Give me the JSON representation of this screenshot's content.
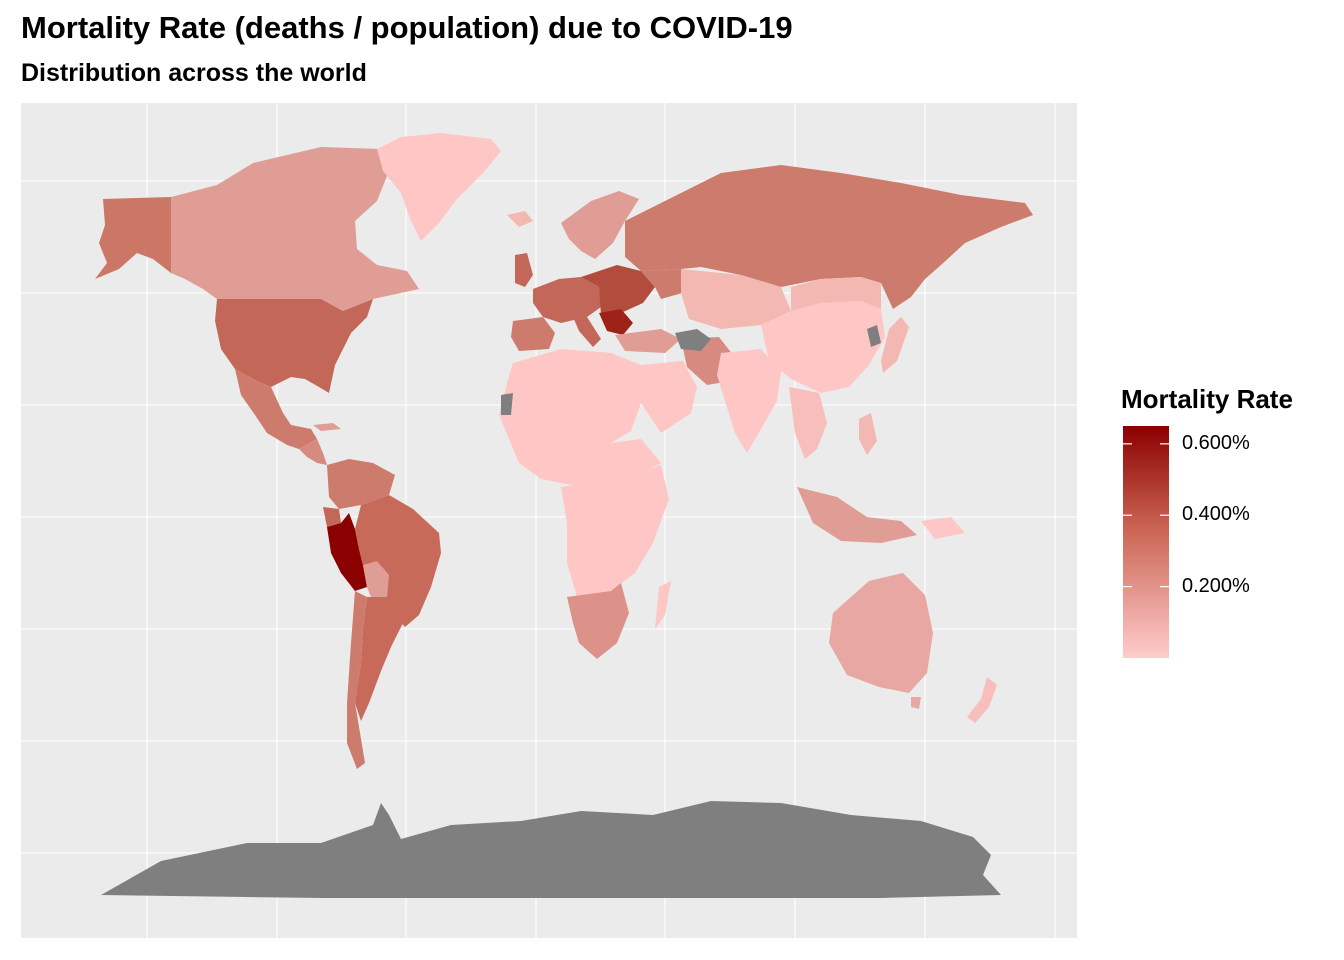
{
  "title": "Mortality Rate (deaths / population) due to COVID-19",
  "subtitle": "Distribution across the world",
  "legend": {
    "title": "Mortality Rate",
    "min_value": 0.0,
    "max_value": 0.65,
    "ticks": [
      {
        "value": 0.6,
        "label": "0.600%"
      },
      {
        "value": 0.4,
        "label": "0.400%"
      },
      {
        "value": 0.2,
        "label": "0.200%"
      }
    ],
    "low_color": "#ffcccc",
    "mid_color": "#cc6655",
    "high_color": "#8b0000",
    "missing_color": "#7f7f7f"
  },
  "panel": {
    "background": "#ebebeb",
    "grid_color": "#ffffff"
  }
}
